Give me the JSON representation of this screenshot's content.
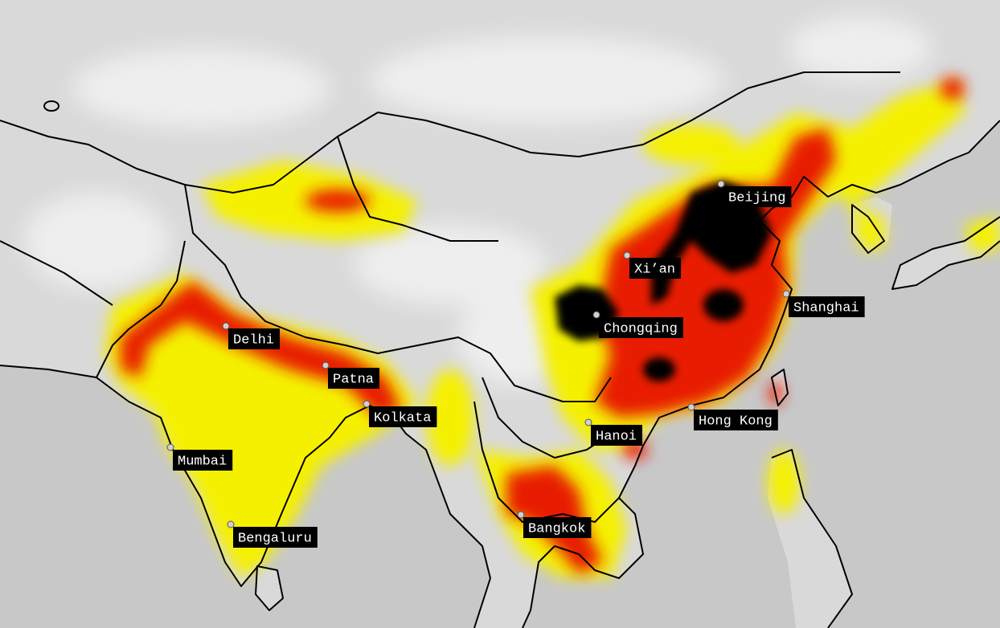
{
  "cities": [
    {
      "label": "Beijing"
    },
    {
      "label": "Xi’an"
    },
    {
      "label": "Shanghai"
    },
    {
      "label": "Chongqing"
    },
    {
      "label": "Delhi"
    },
    {
      "label": "Patna"
    },
    {
      "label": "Kolkata"
    },
    {
      "label": "Hong Kong"
    },
    {
      "label": "Hanoi"
    },
    {
      "label": "Mumbai"
    },
    {
      "label": "Bengaluru"
    },
    {
      "label": "Bangkok"
    }
  ]
}
